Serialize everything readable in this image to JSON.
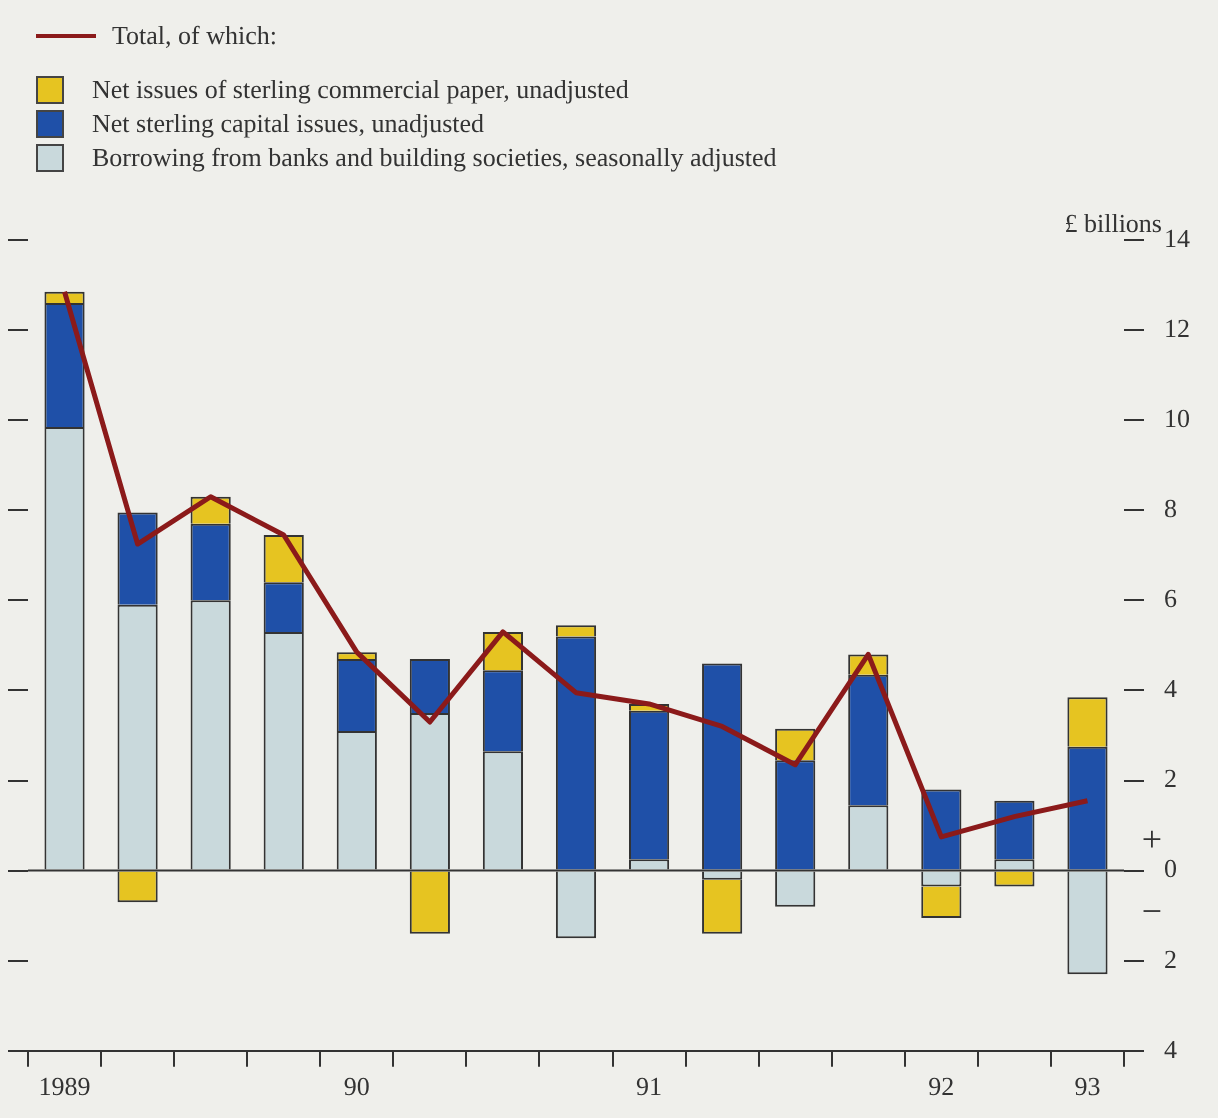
{
  "chart_data": {
    "type": "bar",
    "stacked": true,
    "ylabel": "£ billions",
    "categories": [
      "1989",
      null,
      null,
      null,
      "90",
      null,
      null,
      null,
      "91",
      null,
      null,
      null,
      "92",
      null,
      "93"
    ],
    "series": [
      {
        "name": "Borrowing from banks and building societies, seasonally adjusted",
        "color": "#c9d9dc",
        "values": [
          9.85,
          5.9,
          6.0,
          5.3,
          3.1,
          3.5,
          2.65,
          -1.5,
          0.25,
          -0.2,
          -0.8,
          1.45,
          -0.35,
          0.25,
          -2.3
        ]
      },
      {
        "name": "Net sterling capital issues, unadjusted",
        "color": "#1f50a8",
        "values": [
          2.75,
          2.05,
          1.7,
          1.1,
          1.6,
          1.2,
          1.8,
          5.2,
          3.3,
          4.6,
          2.45,
          2.9,
          1.8,
          1.3,
          2.75
        ]
      },
      {
        "name": "Net issues of sterling commercial paper, unadjusted",
        "color": "#e6c421",
        "values": [
          0.25,
          -0.7,
          0.6,
          1.05,
          0.15,
          -1.4,
          0.85,
          0.25,
          0.15,
          -1.2,
          0.7,
          0.45,
          -0.7,
          -0.35,
          1.1
        ]
      },
      {
        "name": "Total, of which:",
        "type": "line",
        "color": "#8b1a1a",
        "values": [
          12.85,
          7.25,
          8.3,
          7.45,
          4.85,
          3.3,
          5.3,
          3.95,
          3.7,
          3.2,
          2.35,
          4.8,
          0.75,
          1.2,
          1.55
        ]
      }
    ],
    "ylim": [
      -4,
      14
    ],
    "yticks": [
      {
        "value": -4,
        "label": "4"
      },
      {
        "value": -2,
        "label": "2"
      },
      0,
      2,
      4,
      6,
      8,
      10,
      12,
      14
    ],
    "annotations": [
      "+",
      "−"
    ],
    "legend": "top left",
    "marker": "none"
  }
}
